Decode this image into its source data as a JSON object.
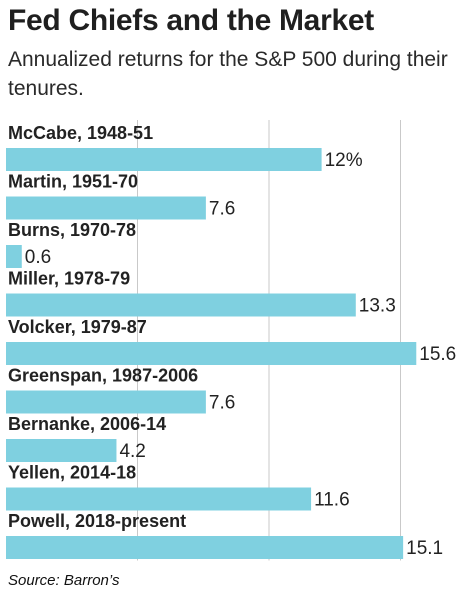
{
  "title": "Fed Chiefs and the Market",
  "subtitle": "Annualized returns for the S&P 500 during their tenures.",
  "source": "Source: Barron’s",
  "colors": {
    "bar": "#7fd0e0",
    "gridline": "#c9c9c9",
    "text": "#222222"
  },
  "chart_data": {
    "type": "bar",
    "orientation": "horizontal",
    "categories": [
      "McCabe, 1948-51",
      "Martin, 1951-70",
      "Burns, 1970-78",
      "Miller, 1978-79",
      "Volcker, 1979-87",
      "Greenspan, 1987-2006",
      "Bernanke, 2006-14",
      "Yellen, 2014-18",
      "Powell, 2018-present"
    ],
    "values": [
      12,
      7.6,
      0.6,
      13.3,
      15.6,
      7.6,
      4.2,
      11.6,
      15.1
    ],
    "value_labels": [
      "12%",
      "7.6",
      "0.6",
      "13.3",
      "15.6",
      "7.6",
      "4.2",
      "11.6",
      "15.1"
    ],
    "unit": "%",
    "xlim": [
      0,
      16
    ],
    "gridlines": [
      5,
      10,
      15
    ],
    "grid": true,
    "legend": "none"
  }
}
